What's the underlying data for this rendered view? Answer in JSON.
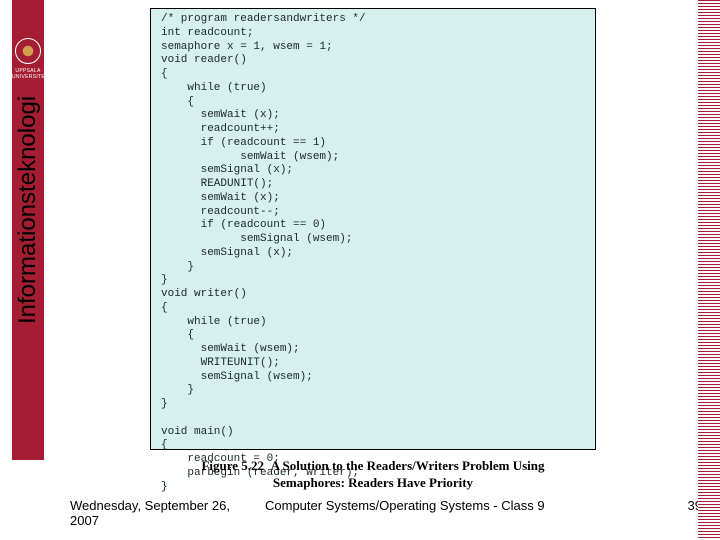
{
  "sidebar": {
    "institution_top": "UPPSALA",
    "institution_bottom": "UNIVERSITET",
    "vertical_title": "Informationsteknologi"
  },
  "code": {
    "lines": "/* program readersandwriters */\nint readcount;\nsemaphore x = 1, wsem = 1;\nvoid reader()\n{\n    while (true)\n    {\n      semWait (x);\n      readcount++;\n      if (readcount == 1)\n            semWait (wsem);\n      semSignal (x);\n      READUNIT();\n      semWait (x);\n      readcount--;\n      if (readcount == 0)\n            semSignal (wsem);\n      semSignal (x);\n    }\n}\nvoid writer()\n{\n    while (true)\n    {\n      semWait (wsem);\n      WRITEUNIT();\n      semSignal (wsem);\n    }\n}\n\nvoid main()\n{\n    readcount = 0;\n    parbegin (reader, writer);\n}"
  },
  "caption": {
    "fignum": "Figure 5.22",
    "title_line1": "A Solution to the Readers/Writers Problem Using",
    "title_line2": "Semaphores: Readers Have Priority"
  },
  "footer": {
    "date": "Wednesday, September 26, 2007",
    "course": "Computer Systems/Operating Systems - Class 9",
    "page": "39"
  }
}
